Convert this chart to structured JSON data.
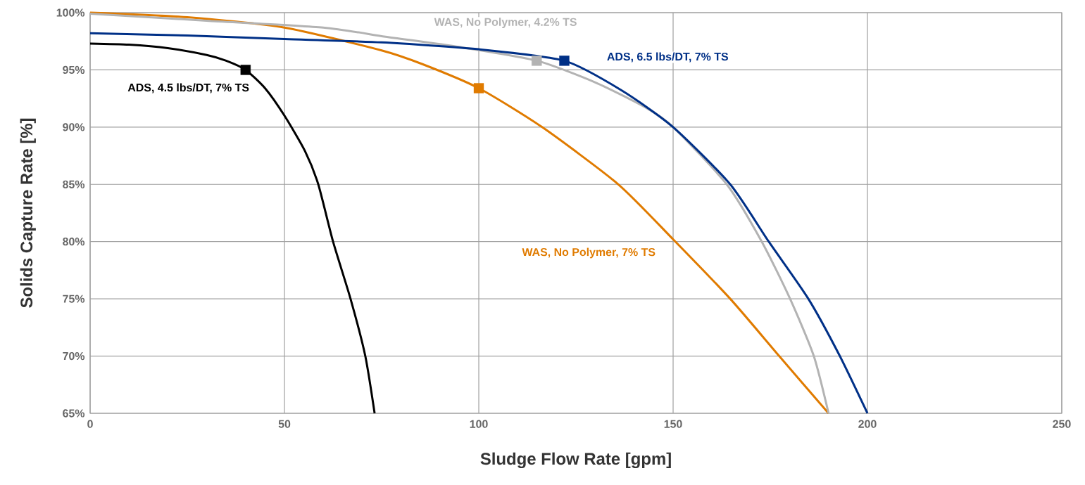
{
  "chart_data": {
    "type": "line",
    "xlabel": "Sludge Flow Rate [gpm]",
    "ylabel": "Solids Capture Rate [%]",
    "xlim": [
      0,
      250
    ],
    "xticks": [
      0,
      50,
      100,
      150,
      200,
      250
    ],
    "ylim": [
      65,
      100
    ],
    "yticks": [
      {
        "value": 65,
        "label": "65%"
      },
      {
        "value": 70,
        "label": "70%"
      },
      {
        "value": 75,
        "label": "75%"
      },
      {
        "value": 80,
        "label": "80%"
      },
      {
        "value": 85,
        "label": "85%"
      },
      {
        "value": 90,
        "label": "90%"
      },
      {
        "value": 95,
        "label": "95%"
      },
      {
        "value": 100,
        "label": "100%"
      }
    ],
    "grid": true,
    "series": [
      {
        "name": "ADS, 4.5 lbs/DT, 7% TS",
        "color": "#000000",
        "marker": "none",
        "x": [
          0,
          10,
          20,
          30,
          35,
          40,
          45,
          50,
          55.3,
          58.7,
          62.5,
          67,
          70.8,
          73.2
        ],
        "values": [
          97.3,
          97.2,
          96.9,
          96.3,
          95.8,
          95.0,
          93.4,
          91.0,
          87.9,
          85,
          80,
          75,
          70,
          65
        ]
      },
      {
        "name": "WAS, No Polymer, 7% TS",
        "color": "#e07b00",
        "marker": "none",
        "x": [
          0,
          25,
          50,
          75,
          85.5,
          100,
          116.3,
          135.9,
          150,
          164.7,
          177.3,
          190
        ],
        "values": [
          100,
          99.6,
          98.7,
          96.7,
          95.5,
          93.4,
          90,
          85,
          80.2,
          75,
          70,
          65
        ]
      },
      {
        "name": "WAS, No Polymer, 4.2% TS",
        "color": "#b3b3b3",
        "marker": "none",
        "x": [
          0,
          30,
          60,
          76,
          95,
          114.9,
          130,
          143,
          150,
          163.8,
          172.8,
          180.1,
          186.2,
          190
        ],
        "values": [
          99.9,
          99.3,
          98.7,
          97.9,
          97.0,
          95.8,
          93.9,
          91.7,
          90,
          85,
          80,
          75,
          70,
          65
        ]
      },
      {
        "name": "ADS, 6.5 lbs/DT, 7% TS",
        "color": "#003087",
        "marker": "none",
        "x": [
          0,
          25,
          50,
          75,
          100,
          122,
          136.8,
          150,
          164.7,
          174.6,
          184.8,
          192.9,
          200
        ],
        "values": [
          98.2,
          98.0,
          97.7,
          97.4,
          96.8,
          95.8,
          93.2,
          90,
          85,
          80,
          75,
          70,
          65
        ]
      },
      {
        "type": "scatter",
        "marker": "square",
        "color": "#000000",
        "x": [
          40
        ],
        "values": [
          95.0
        ]
      },
      {
        "type": "scatter",
        "marker": "square",
        "color": "#e07b00",
        "x": [
          100
        ],
        "values": [
          93.4
        ]
      },
      {
        "type": "scatter",
        "marker": "square",
        "color": "#b3b3b3",
        "x": [
          114.9
        ],
        "values": [
          95.8
        ]
      },
      {
        "type": "scatter",
        "marker": "square",
        "color": "#003087",
        "x": [
          122
        ],
        "values": [
          95.8
        ]
      }
    ]
  }
}
